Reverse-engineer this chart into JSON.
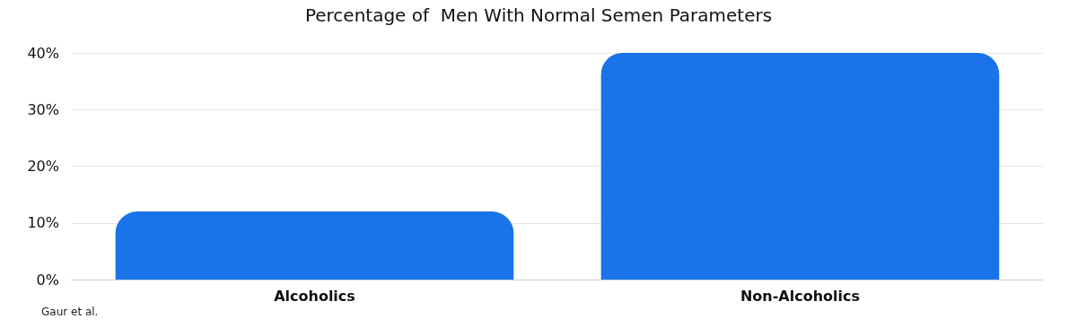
{
  "chart_data": {
    "type": "bar",
    "title": "Percentage of  Men With Normal Semen Parameters",
    "categories": [
      "Alcoholics",
      "Non-Alcoholics"
    ],
    "values": [
      12,
      40
    ],
    "color": "#1a73e8",
    "ylim": [
      0,
      40
    ],
    "yticks": [
      {
        "value": 0,
        "label": "0%"
      },
      {
        "value": 10,
        "label": "10%"
      },
      {
        "value": 20,
        "label": "20%"
      },
      {
        "value": 30,
        "label": "30%"
      },
      {
        "value": 40,
        "label": "40%"
      }
    ],
    "grid": "y",
    "annotations": [
      "Gaur et al."
    ]
  }
}
